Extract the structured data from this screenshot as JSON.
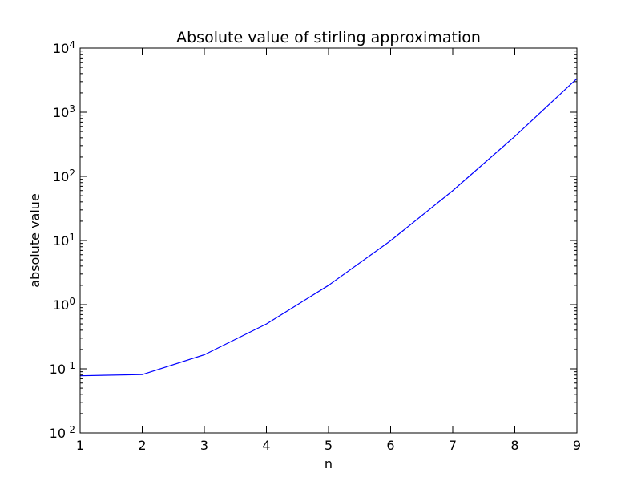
{
  "chart_data": {
    "type": "line",
    "title": "Absolute value of stirling approximation",
    "xlabel": "n",
    "ylabel": "absolute value",
    "x_scale": "linear",
    "y_scale": "log",
    "xlim": [
      1,
      9
    ],
    "ylim": [
      0.01,
      10000
    ],
    "x_ticks": [
      1,
      2,
      3,
      4,
      5,
      6,
      7,
      8,
      9
    ],
    "y_ticks": [
      {
        "value": 0.01,
        "base": "10",
        "exp": "-2"
      },
      {
        "value": 0.1,
        "base": "10",
        "exp": "-1"
      },
      {
        "value": 1,
        "base": "10",
        "exp": "0"
      },
      {
        "value": 10,
        "base": "10",
        "exp": "1"
      },
      {
        "value": 100,
        "base": "10",
        "exp": "2"
      },
      {
        "value": 1000,
        "base": "10",
        "exp": "3"
      },
      {
        "value": 10000,
        "base": "10",
        "exp": "4"
      }
    ],
    "grid": false,
    "legend": "none",
    "series": [
      {
        "color": "#0000ff",
        "x": [
          1,
          2,
          3,
          4,
          5,
          6,
          7,
          8,
          9
        ],
        "y": [
          0.0779,
          0.0813,
          0.1655,
          0.4992,
          1.9992,
          9.9298,
          59.7677,
          420.0,
          3343.0
        ]
      }
    ]
  }
}
